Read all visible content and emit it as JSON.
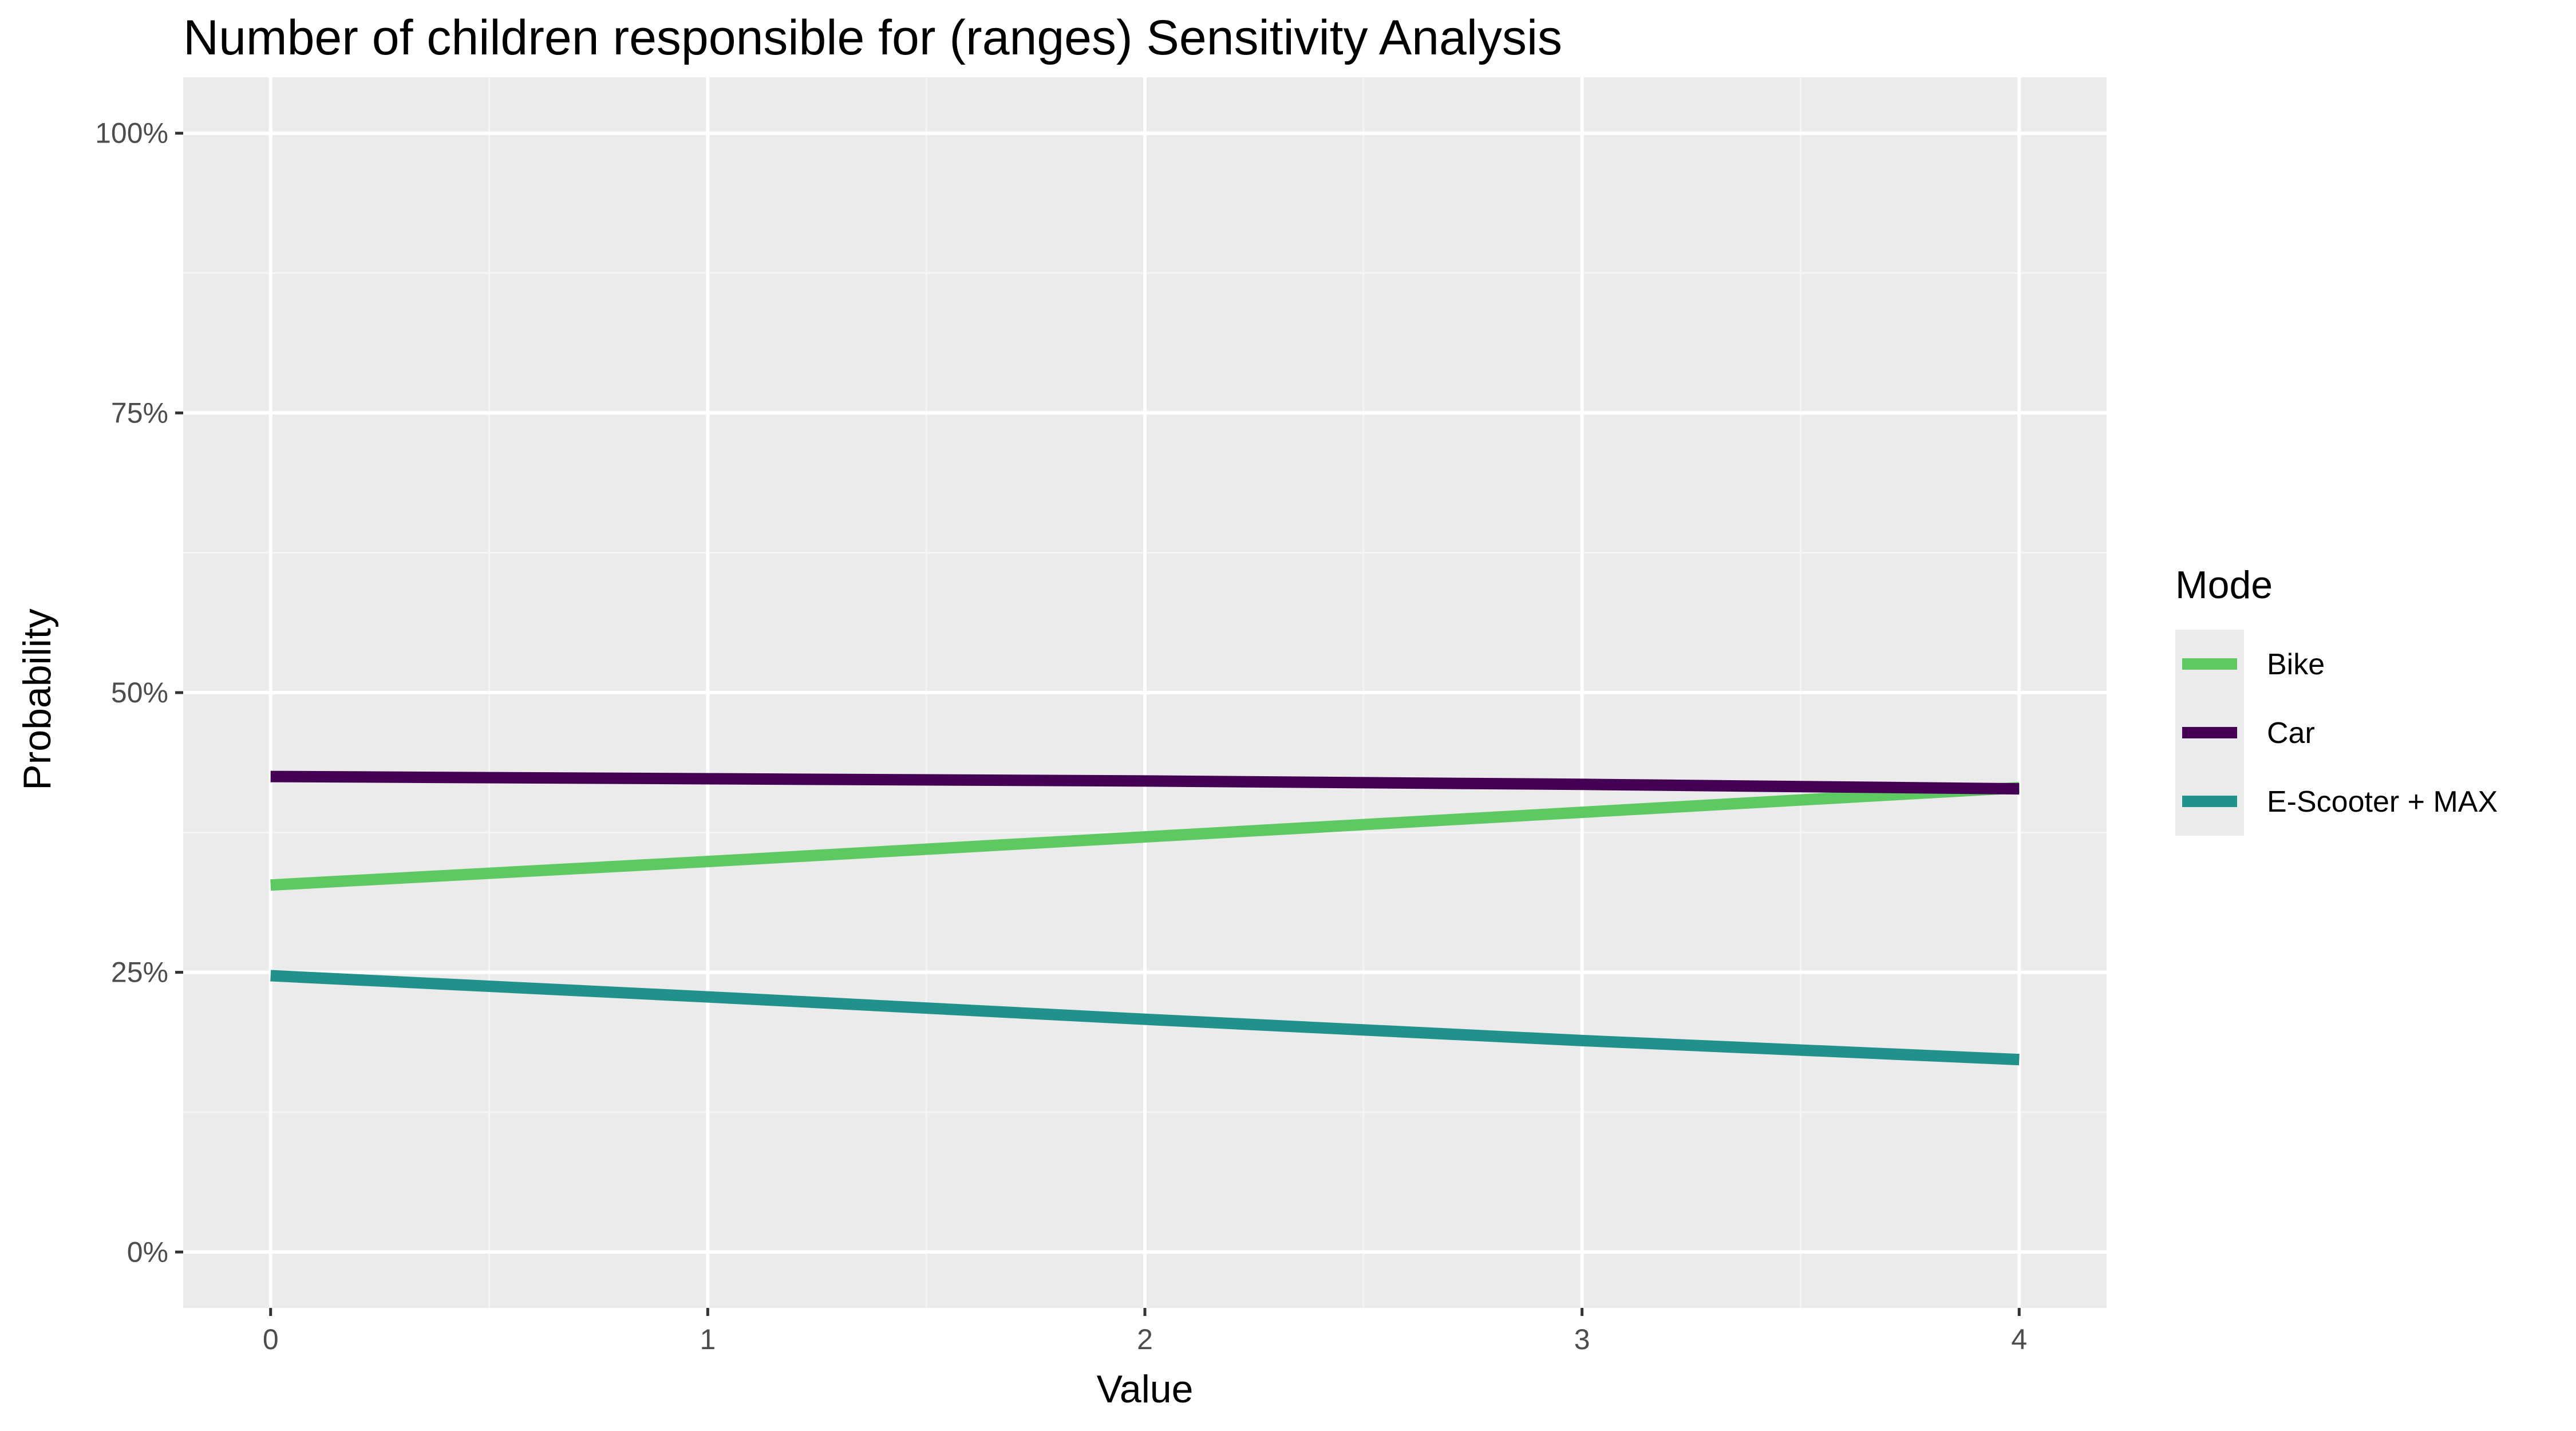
{
  "chart_data": {
    "type": "line",
    "title": "Number of children responsible for (ranges) Sensitivity Analysis",
    "xlabel": "Value",
    "ylabel": "Probability",
    "x": [
      0,
      1,
      2,
      3,
      4
    ],
    "x_ticks": [
      "0",
      "1",
      "2",
      "3",
      "4"
    ],
    "y_ticks": [
      "0%",
      "25%",
      "50%",
      "75%",
      "100%"
    ],
    "y_tick_values": [
      0,
      0.25,
      0.5,
      0.75,
      1.0
    ],
    "xlim": [
      -0.2,
      4.2
    ],
    "ylim": [
      -0.05,
      1.05
    ],
    "grid": true,
    "legend_position": "right",
    "legend_title": "Mode",
    "series": [
      {
        "name": "Bike",
        "color": "#5ec962",
        "values": [
          0.328,
          0.349,
          0.371,
          0.393,
          0.415
        ]
      },
      {
        "name": "Car",
        "color": "#440154",
        "values": [
          0.425,
          0.423,
          0.421,
          0.418,
          0.414
        ]
      },
      {
        "name": "E-Scooter + MAX",
        "color": "#21918c",
        "values": [
          0.247,
          0.228,
          0.208,
          0.189,
          0.172
        ]
      }
    ]
  },
  "colors": {
    "panel_background": "#ebebeb",
    "grid_major": "#ffffff",
    "grid_minor": "#f5f5f5"
  }
}
